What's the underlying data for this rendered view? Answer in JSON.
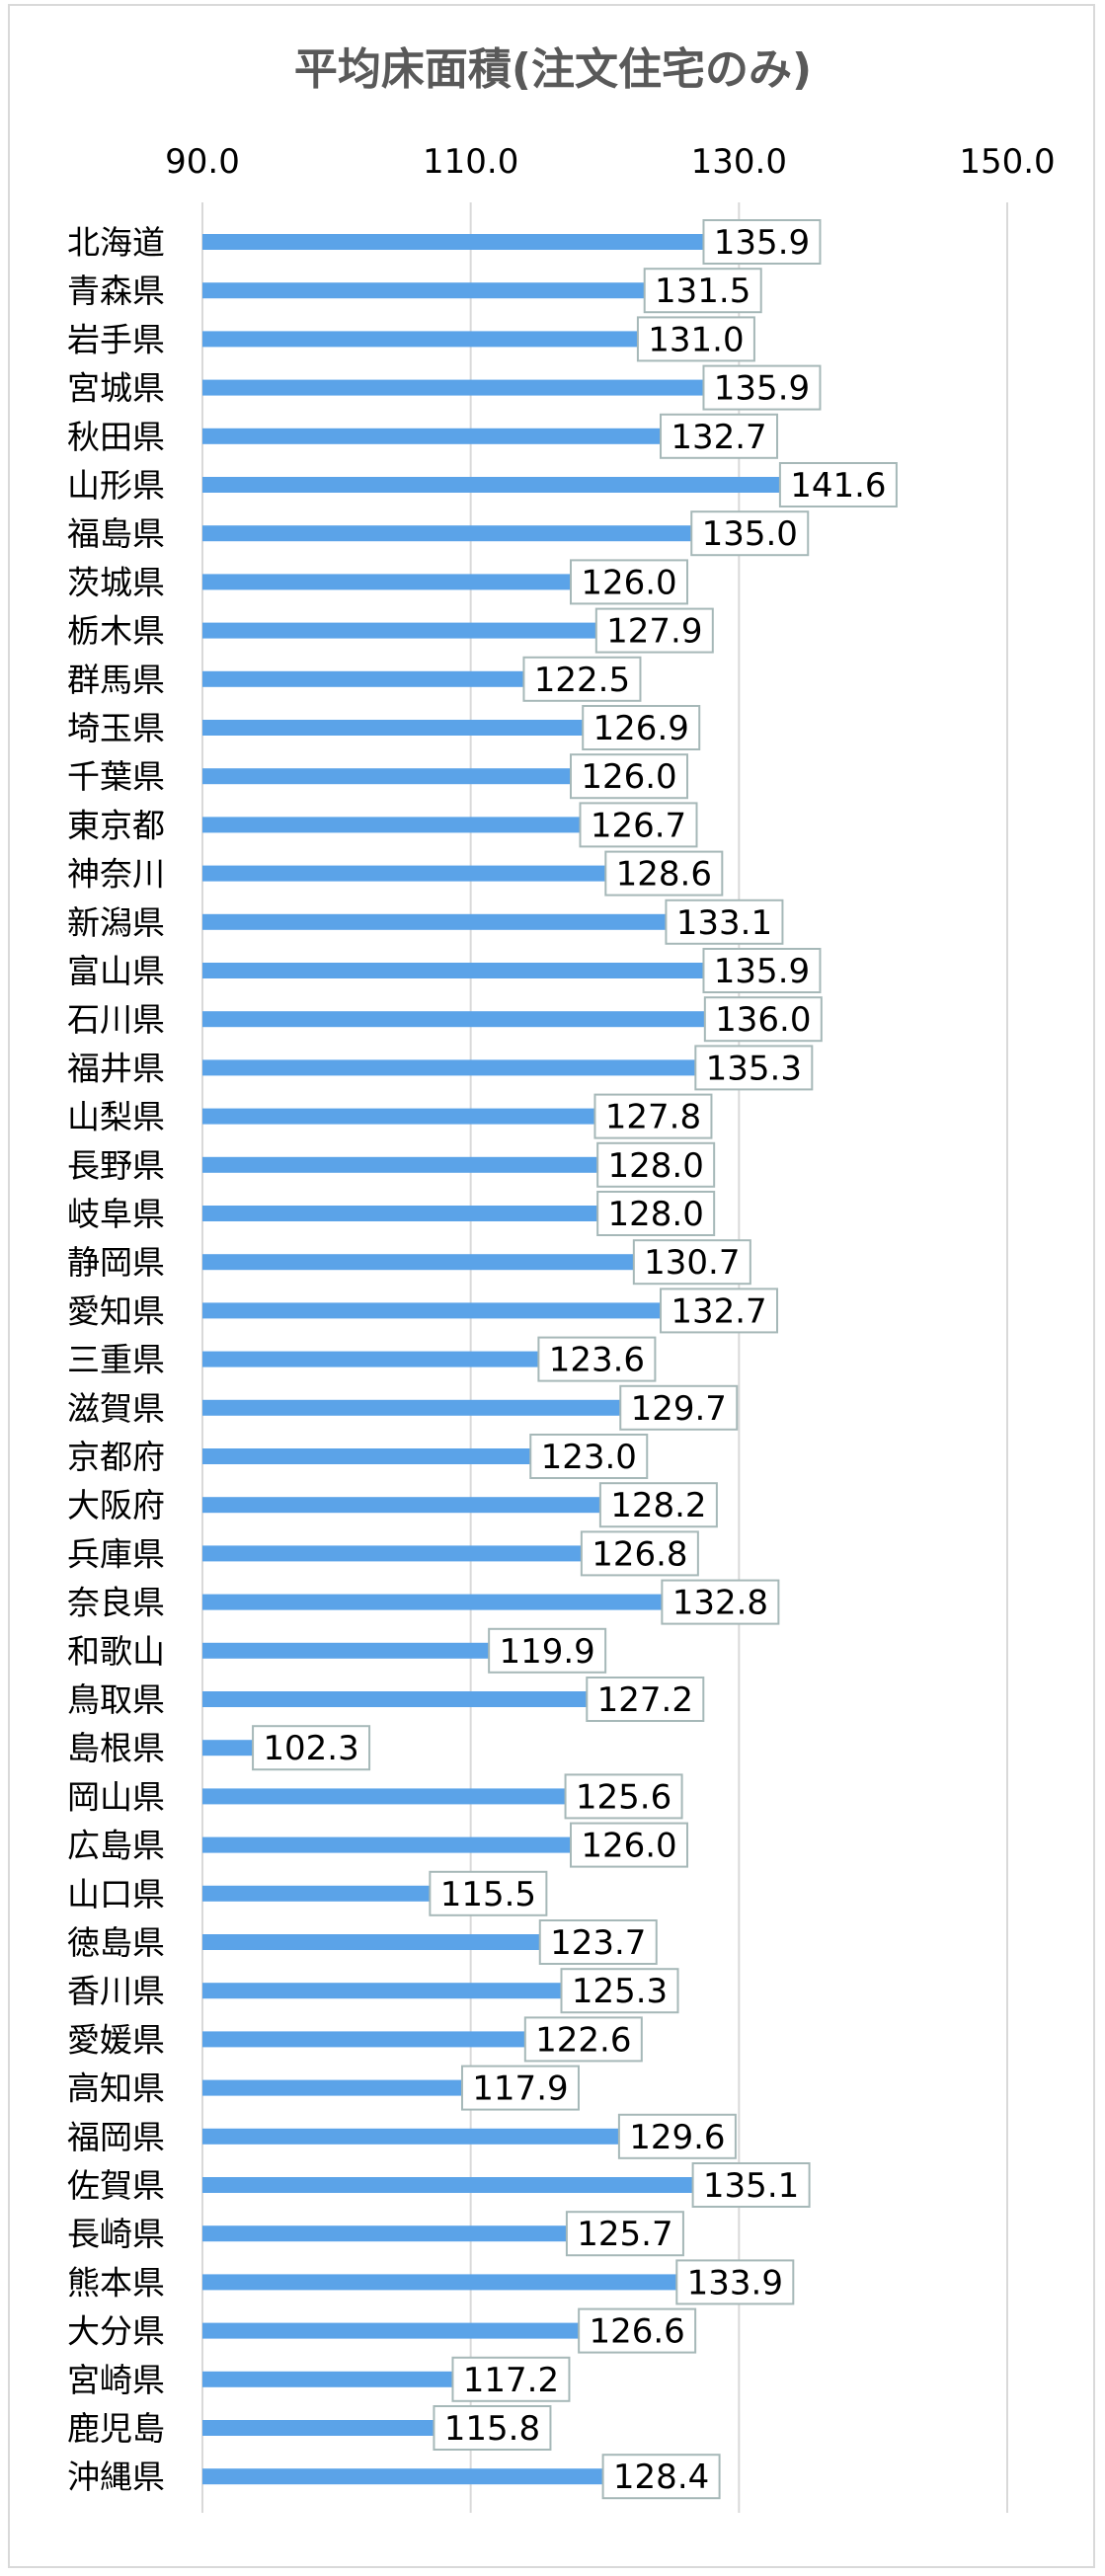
{
  "chart_data": {
    "type": "bar",
    "orientation": "horizontal",
    "title": "平均床面積(注文住宅のみ)",
    "xlim": [
      90,
      150
    ],
    "ticks": [
      "90.0",
      "110.0",
      "130.0",
      "150.0"
    ],
    "tick_values": [
      90,
      110,
      130,
      150
    ],
    "gridlines": true,
    "axis_position": "top",
    "bar_color": "#5ba3e8",
    "categories": [
      "北海道",
      "青森県",
      "岩手県",
      "宮城県",
      "秋田県",
      "山形県",
      "福島県",
      "茨城県",
      "栃木県",
      "群馬県",
      "埼玉県",
      "千葉県",
      "東京都",
      "神奈川",
      "新潟県",
      "富山県",
      "石川県",
      "福井県",
      "山梨県",
      "長野県",
      "岐阜県",
      "静岡県",
      "愛知県",
      "三重県",
      "滋賀県",
      "京都府",
      "大阪府",
      "兵庫県",
      "奈良県",
      "和歌山",
      "鳥取県",
      "島根県",
      "岡山県",
      "広島県",
      "山口県",
      "徳島県",
      "香川県",
      "愛媛県",
      "高知県",
      "福岡県",
      "佐賀県",
      "長崎県",
      "熊本県",
      "大分県",
      "宮崎県",
      "鹿児島",
      "沖縄県"
    ],
    "values": [
      135.9,
      131.5,
      131.0,
      135.9,
      132.7,
      141.6,
      135.0,
      126.0,
      127.9,
      122.5,
      126.9,
      126.0,
      126.7,
      128.6,
      133.1,
      135.9,
      136.0,
      135.3,
      127.8,
      128.0,
      128.0,
      130.7,
      132.7,
      123.6,
      129.7,
      123.0,
      128.2,
      126.8,
      132.8,
      119.9,
      127.2,
      102.3,
      125.6,
      126.0,
      115.5,
      123.7,
      125.3,
      122.6,
      117.9,
      129.6,
      135.1,
      125.7,
      133.9,
      126.6,
      117.2,
      115.8,
      128.4
    ],
    "data_labels": [
      "135.9",
      "131.5",
      "131.0",
      "135.9",
      "132.7",
      "141.6",
      "135.0",
      "126.0",
      "127.9",
      "122.5",
      "126.9",
      "126.0",
      "126.7",
      "128.6",
      "133.1",
      "135.9",
      "136.0",
      "135.3",
      "127.8",
      "128.0",
      "128.0",
      "130.7",
      "132.7",
      "123.6",
      "129.7",
      "123.0",
      "128.2",
      "126.8",
      "132.8",
      "119.9",
      "127.2",
      "102.3",
      "125.6",
      "126.0",
      "115.5",
      "123.7",
      "125.3",
      "122.6",
      "117.9",
      "129.6",
      "135.1",
      "125.7",
      "133.9",
      "126.6",
      "117.2",
      "115.8",
      "128.4"
    ]
  }
}
